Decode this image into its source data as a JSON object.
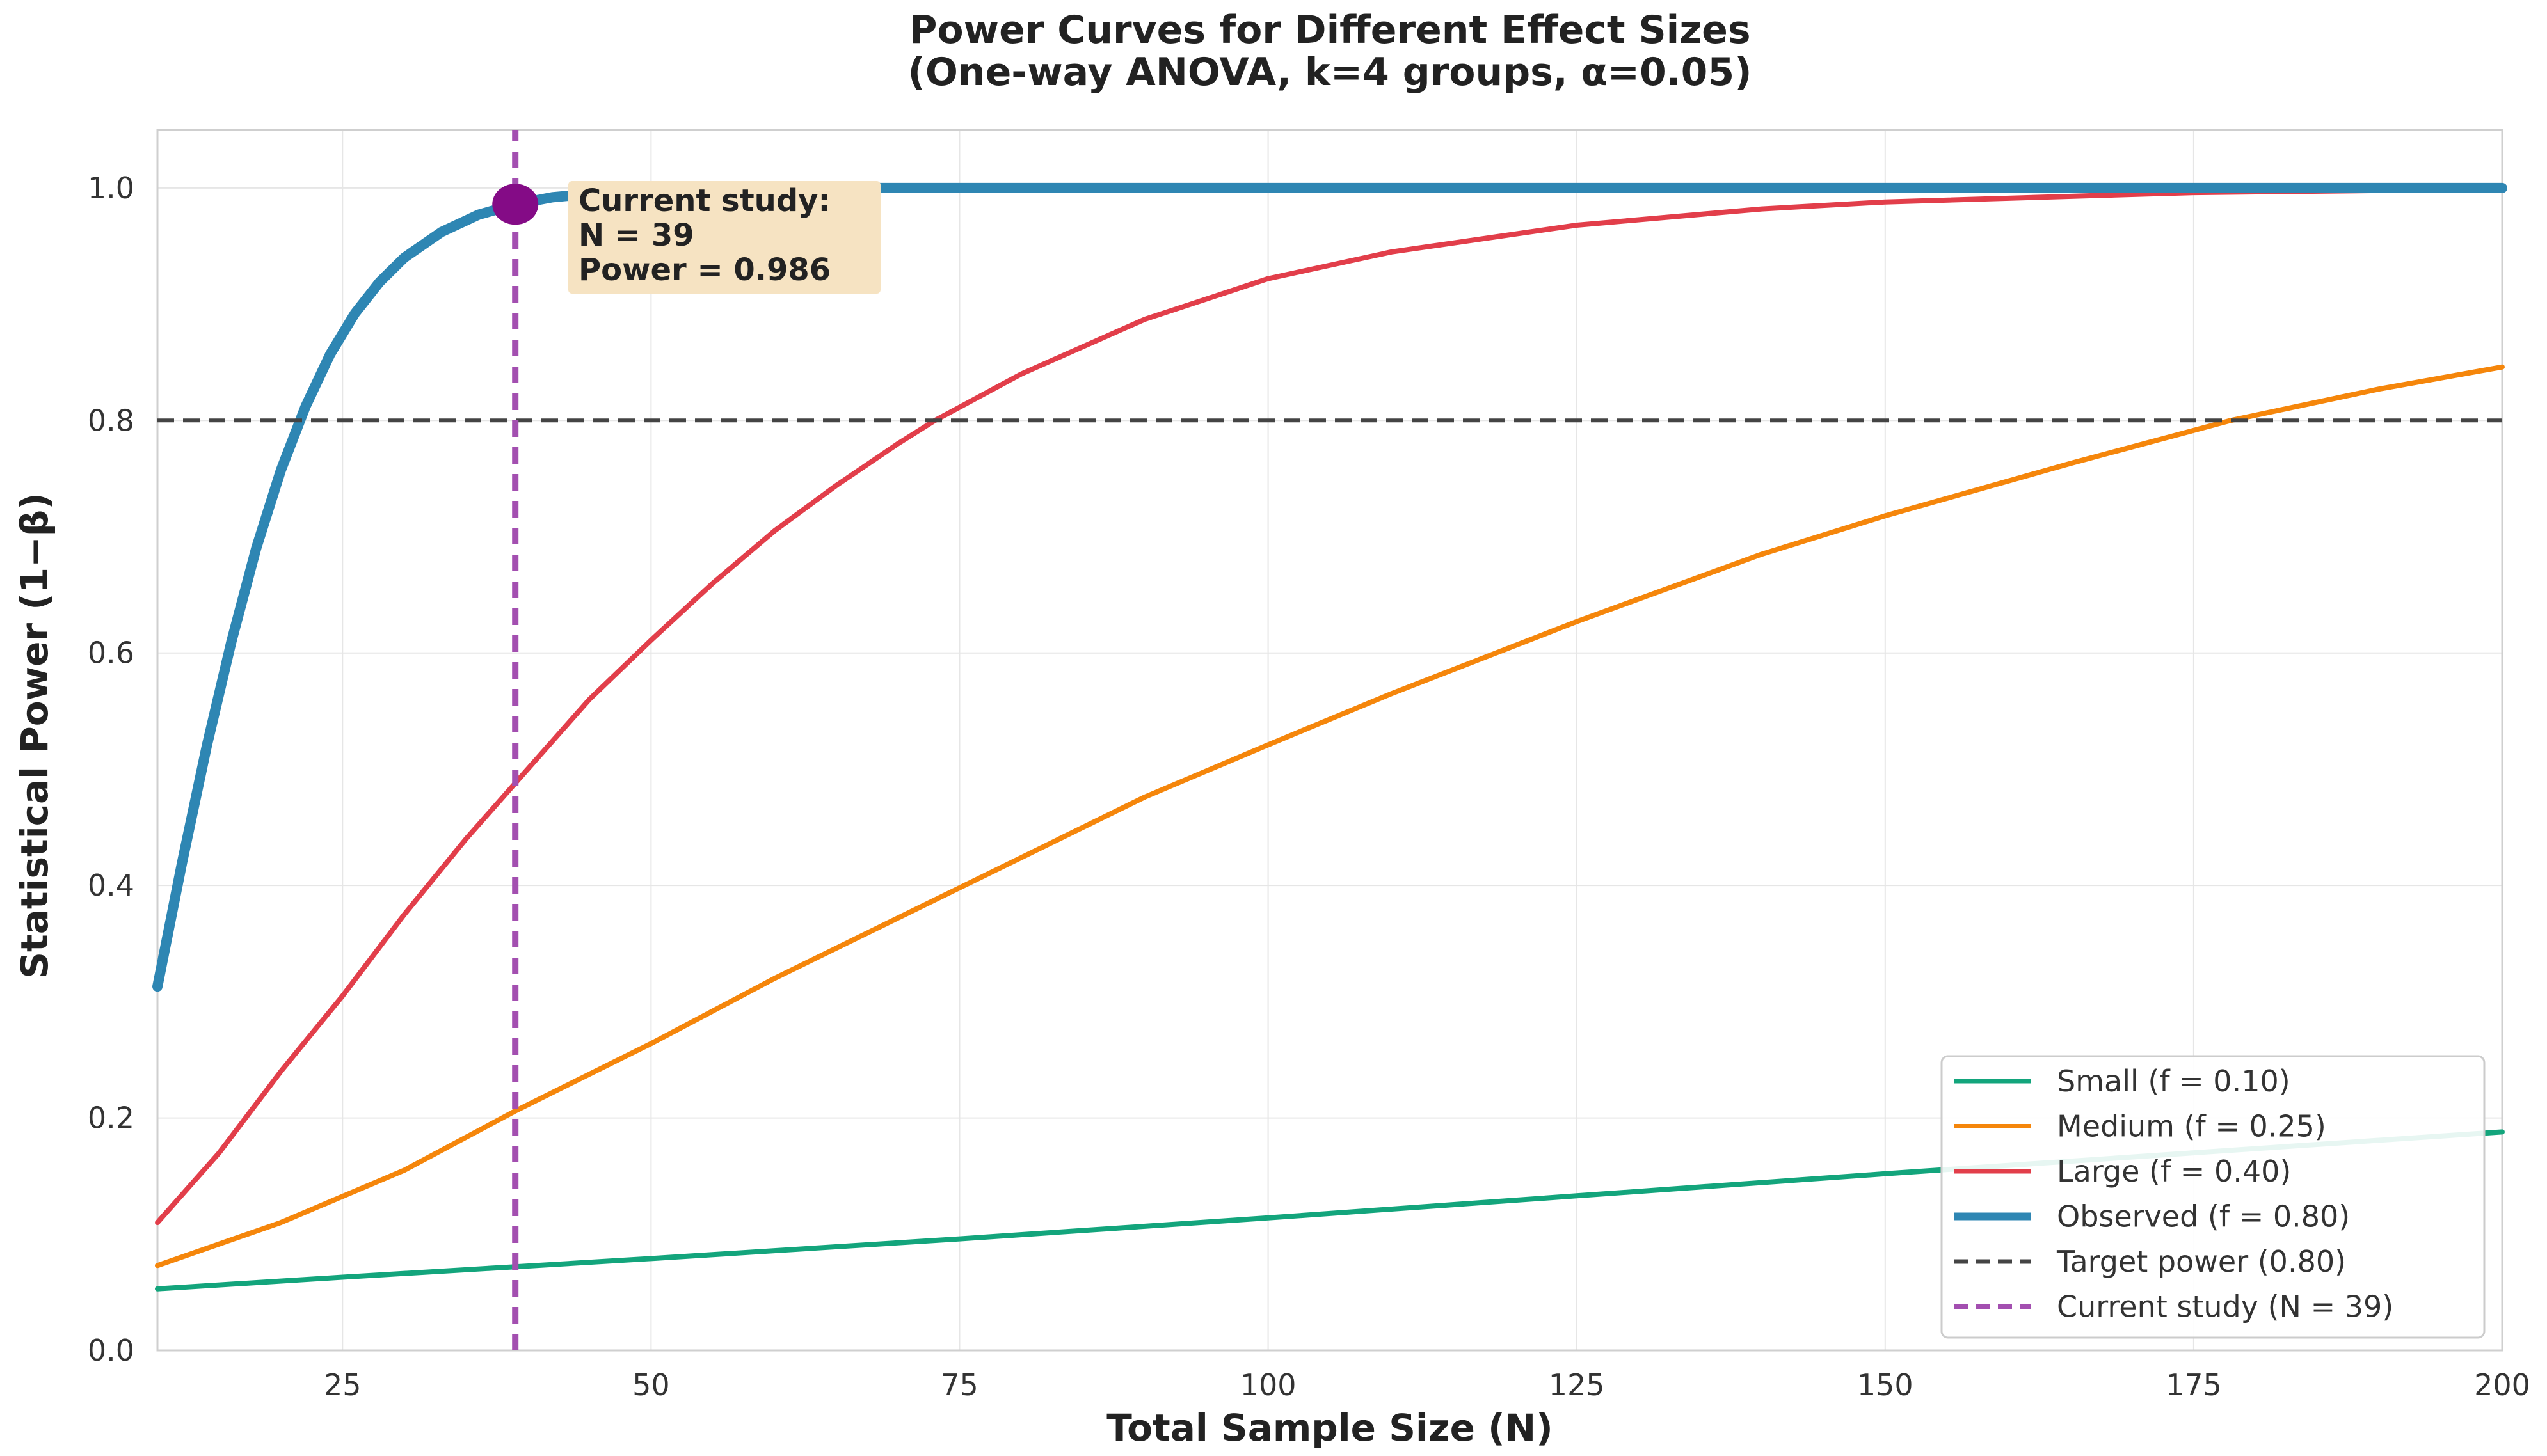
{
  "chart_data": {
    "type": "line",
    "title": "Power Curves for Different Effect Sizes",
    "subtitle": "(One-way ANOVA, k=4 groups, α=0.05)",
    "xlabel": "Total Sample Size (N)",
    "ylabel": "Statistical Power (1−β)",
    "xlim": [
      10,
      200
    ],
    "ylim": [
      0.0,
      1.05
    ],
    "xticks": [
      25,
      50,
      75,
      100,
      125,
      150,
      175,
      200
    ],
    "yticks": [
      0.0,
      0.2,
      0.4,
      0.6,
      0.8,
      1.0
    ],
    "grid": true,
    "legend_position": "bottom-right",
    "series": [
      {
        "name": "Small (f = 0.10)",
        "color": "#13a57c",
        "line_style": "solid",
        "x": [
          10,
          25,
          39,
          50,
          75,
          100,
          125,
          150,
          175,
          200
        ],
        "y": [
          0.053,
          0.063,
          0.072,
          0.079,
          0.096,
          0.114,
          0.133,
          0.152,
          0.17,
          0.188
        ]
      },
      {
        "name": "Medium (f = 0.25)",
        "color": "#f5860b",
        "line_style": "solid",
        "x": [
          10,
          20,
          30,
          39,
          50,
          60,
          75,
          90,
          100,
          110,
          125,
          140,
          150,
          165,
          178,
          190,
          200
        ],
        "y": [
          0.073,
          0.11,
          0.155,
          0.206,
          0.264,
          0.32,
          0.398,
          0.476,
          0.521,
          0.565,
          0.627,
          0.685,
          0.718,
          0.763,
          0.8,
          0.827,
          0.846
        ]
      },
      {
        "name": "Large (f = 0.40)",
        "color": "#e23e4a",
        "line_style": "solid",
        "x": [
          10,
          15,
          20,
          25,
          30,
          35,
          39,
          45,
          50,
          55,
          60,
          65,
          70,
          73,
          80,
          90,
          100,
          110,
          125,
          140,
          150,
          175,
          200
        ],
        "y": [
          0.11,
          0.17,
          0.24,
          0.305,
          0.375,
          0.44,
          0.488,
          0.56,
          0.611,
          0.66,
          0.705,
          0.744,
          0.78,
          0.8,
          0.84,
          0.887,
          0.922,
          0.945,
          0.968,
          0.982,
          0.988,
          0.996,
          0.999
        ]
      },
      {
        "name": "Observed (f = 0.80)",
        "color": "#2e86b3",
        "line_style": "solid",
        "x": [
          10,
          12,
          14,
          16,
          18,
          20,
          22,
          24,
          26,
          28,
          30,
          33,
          36,
          39,
          42,
          46,
          50,
          60,
          75,
          100,
          150,
          200
        ],
        "y": [
          0.313,
          0.42,
          0.52,
          0.61,
          0.69,
          0.757,
          0.812,
          0.857,
          0.892,
          0.919,
          0.94,
          0.962,
          0.977,
          0.986,
          0.992,
          0.996,
          0.998,
          1.0,
          1.0,
          1.0,
          1.0,
          1.0
        ]
      },
      {
        "name": "Target power (0.80)",
        "color": "#444444",
        "line_style": "dashed",
        "x": [
          10,
          200
        ],
        "y": [
          0.8,
          0.8
        ]
      },
      {
        "name": "Current study (N = 39)",
        "color": "#a34fb0",
        "line_style": "dashed",
        "x": [
          39,
          39
        ],
        "y": [
          0.0,
          1.05
        ]
      }
    ],
    "marker": {
      "x": 39,
      "y": 0.986,
      "color": "#840b86"
    },
    "annotation": {
      "lines": [
        "Current study:",
        "N = 39",
        "Power = 0.986"
      ],
      "background": "#f6e3c2"
    }
  }
}
